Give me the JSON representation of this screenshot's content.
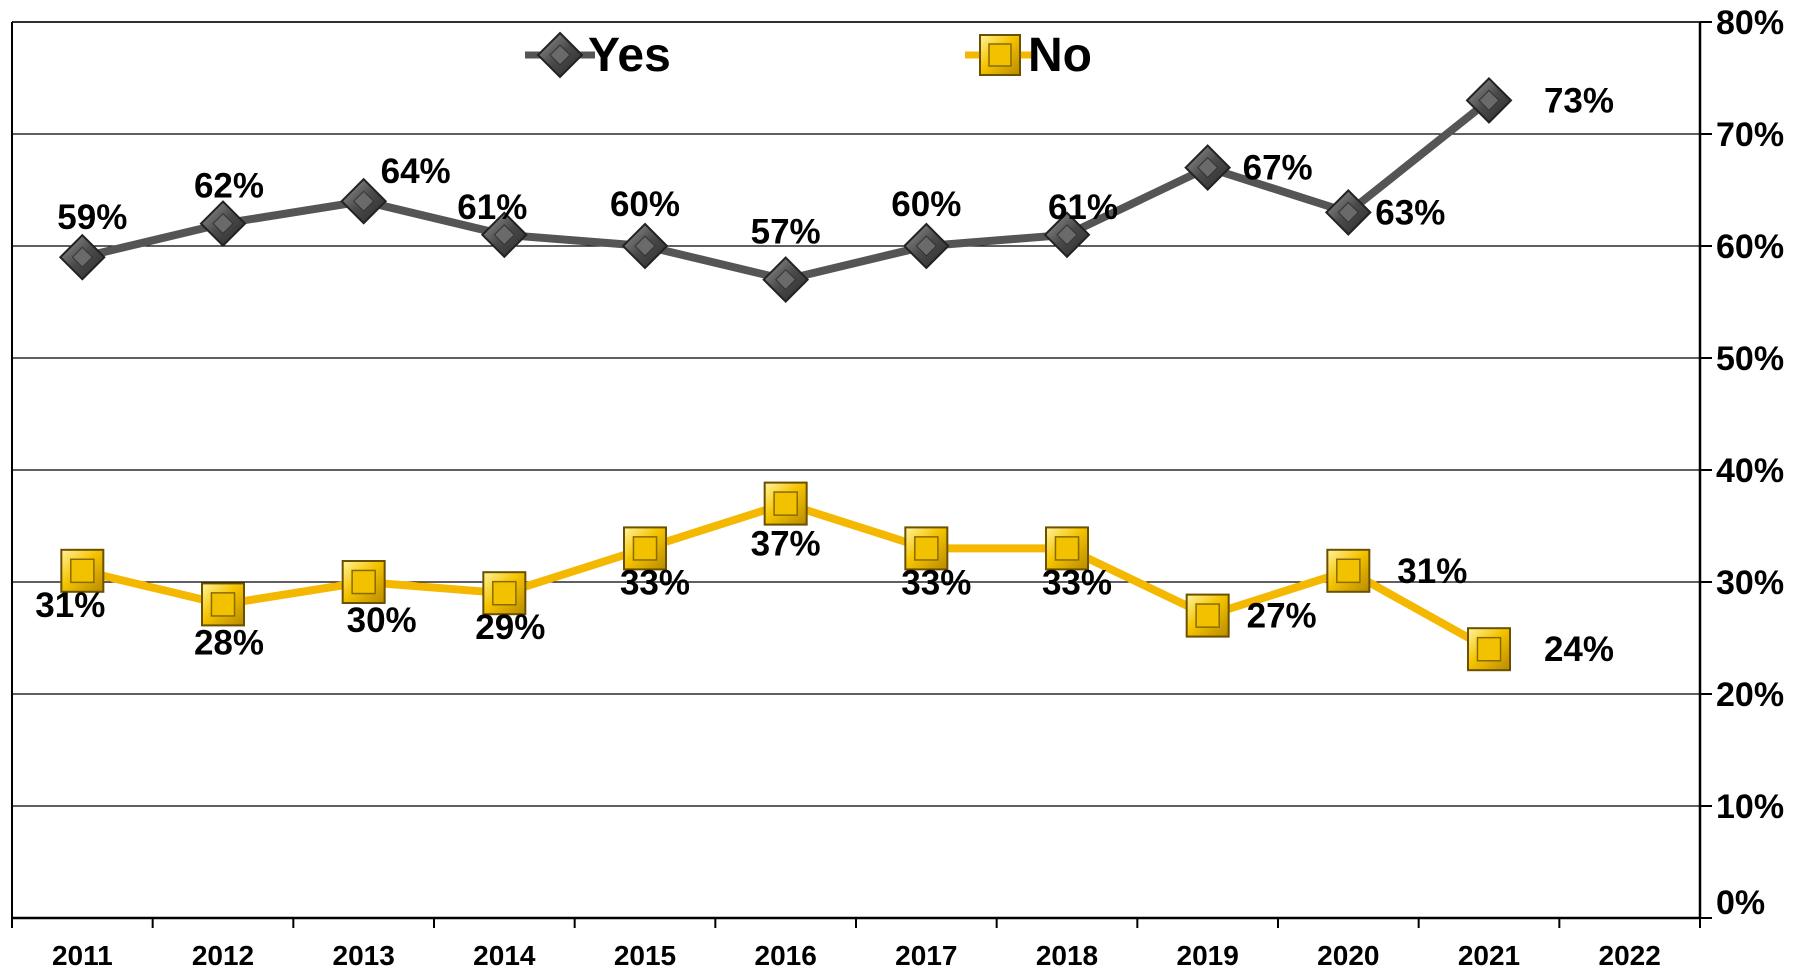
{
  "chart_data": {
    "type": "line",
    "categories": [
      "2011",
      "2012",
      "2013",
      "2014",
      "2015",
      "2016",
      "2017",
      "2018",
      "2019",
      "2020",
      "2021",
      "2022"
    ],
    "series": [
      {
        "name": "Yes",
        "color": "#555555",
        "marker": "diamond",
        "values": [
          59,
          62,
          64,
          61,
          60,
          57,
          60,
          61,
          67,
          63,
          73,
          null
        ],
        "labels": [
          "59%",
          "62%",
          "64%",
          "61%",
          "60%",
          "57%",
          "60%",
          "61%",
          "67%",
          "63%",
          "73%",
          ""
        ]
      },
      {
        "name": "No",
        "color": "#f5b800",
        "marker": "square",
        "values": [
          31,
          28,
          30,
          29,
          33,
          37,
          33,
          33,
          27,
          31,
          24,
          null
        ],
        "labels": [
          "31%",
          "28%",
          "30%",
          "29%",
          "33%",
          "37%",
          "33%",
          "33%",
          "27%",
          "31%",
          "24%",
          ""
        ]
      }
    ],
    "ylim": [
      0,
      80
    ],
    "yticks": [
      0,
      10,
      20,
      30,
      40,
      50,
      60,
      70,
      80
    ],
    "ytick_labels": [
      "0%",
      "10%",
      "20%",
      "30%",
      "40%",
      "50%",
      "60%",
      "70%",
      "80%"
    ],
    "y_axis_side": "right",
    "grid": true,
    "legend": "top-center"
  }
}
